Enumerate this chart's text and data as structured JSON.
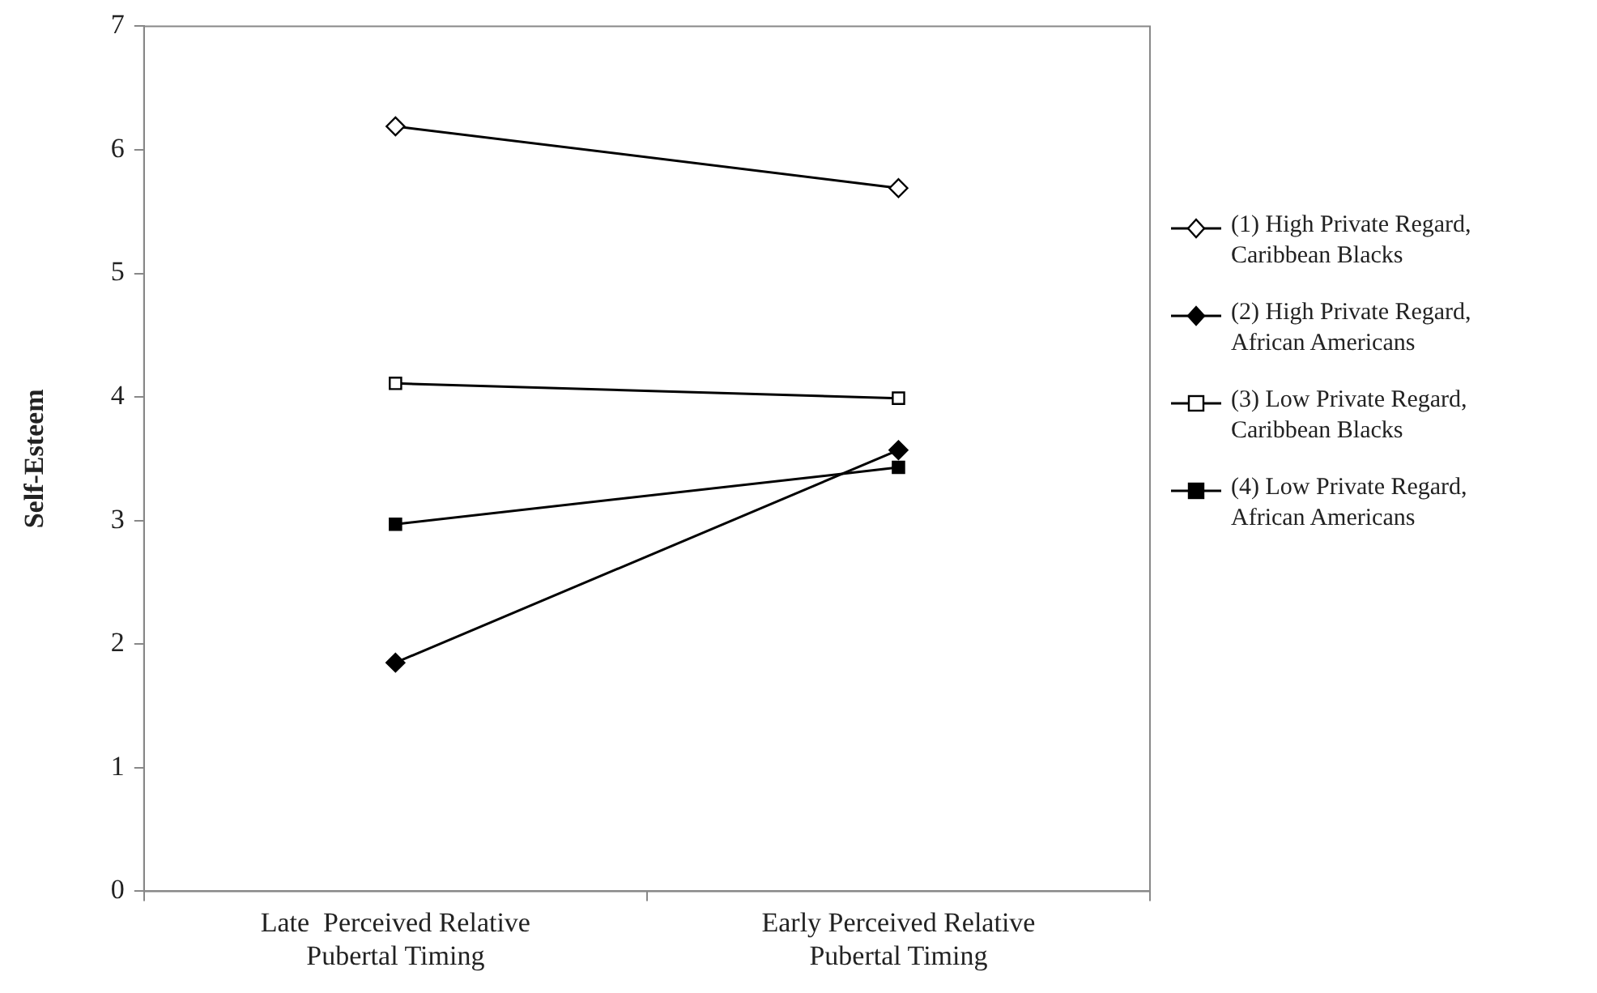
{
  "chart_data": {
    "type": "line",
    "ylabel": "Self-Esteem",
    "categories": [
      "Late  Perceived Relative\nPubertal Timing",
      "Early Perceived Relative\nPubertal Timing"
    ],
    "ylim": [
      0,
      7
    ],
    "yticks": [
      0,
      1,
      2,
      3,
      4,
      5,
      6,
      7
    ],
    "grid": false,
    "legend": "right",
    "line_style": "solid",
    "series": [
      {
        "name": "(1) High Private Regard, Caribbean Blacks",
        "color": "#000000",
        "marker": "diamond",
        "values": [
          6.19,
          5.69
        ]
      },
      {
        "name": "(2) High Private Regard, African Americans",
        "color": "#000000",
        "marker": "diamond",
        "values": [
          1.85,
          3.57
        ]
      },
      {
        "name": "(3) Low Private Regard, Caribbean Blacks",
        "color": "#000000",
        "marker": "square",
        "values": [
          4.11,
          3.99
        ]
      },
      {
        "name": "(4) Low Private Regard, African Americans",
        "color": "#000000",
        "marker": "square",
        "values": [
          2.97,
          3.43
        ]
      }
    ]
  }
}
